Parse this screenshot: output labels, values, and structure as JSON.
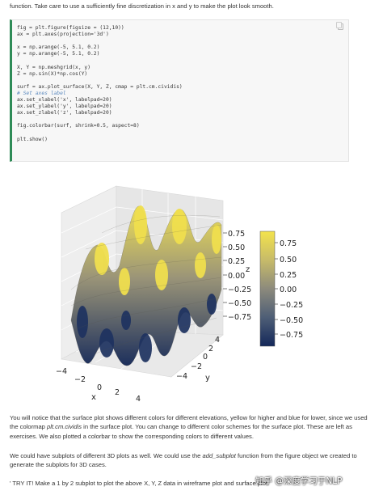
{
  "intro_text": "function. Take care to use a sufficiently fine discretization in x and y to make the plot look smooth.",
  "code": {
    "lines_a": "fig = plt.figure(figsize = (12,10))\nax = plt.axes(projection='3d')\n\nx = np.arange(-5, 5.1, 0.2)\ny = np.arange(-5, 5.1, 0.2)\n\nX, Y = np.meshgrid(x, y)\nZ = np.sin(X)*np.cos(Y)\n\nsurf = ax.plot_surface(X, Y, Z, cmap = plt.cm.cividis)\n",
    "comment": "# Set axes label",
    "lines_b": "ax.set_xlabel('x', labelpad=20)\nax.set_ylabel('y', labelpad=20)\nax.set_zlabel('z', labelpad=20)\n\nfig.colorbar(surf, shrink=0.5, aspect=8)\n\nplt.show()"
  },
  "plot": {
    "z_ticks": [
      "0.75",
      "0.50",
      "0.25",
      "0.00",
      "−0.25",
      "−0.50",
      "−0.75"
    ],
    "colorbar_ticks": [
      "0.75",
      "0.50",
      "0.25",
      "0.00",
      "−0.25",
      "−0.50",
      "−0.75"
    ],
    "x_ticks": [
      "−4",
      "−2",
      "0",
      "2",
      "4"
    ],
    "y_ticks": [
      "−4",
      "−2",
      "0",
      "2",
      "4"
    ],
    "xlabel": "x",
    "ylabel": "y",
    "zlabel": "z",
    "colors": {
      "high": "#f2e14a",
      "mid": "#8f8a78",
      "low": "#1b2f5a"
    }
  },
  "paragraphs": {
    "p1_a": "You will notice that the surface plot shows different colors for different elevations, yellow for higher and blue for lower, since we used the colormap ",
    "p1_em": "plt.cm.cividis",
    "p1_b": " in the surface plot. You can change to different color schemes for the surface plot. These are left as exercises. We also plotted a colorbar to show the corresponding colors to different values.",
    "p2_a": "We could have subplots of different 3D plots as well. We could use the ",
    "p2_em": "add_subplot",
    "p2_b": " function from the figure object we created to generate the subplots for 3D cases.",
    "p3": "' TRY IT! Make a 1 by 2 subplot to plot the above X, Y, Z data in wireframe plot and surface plot."
  },
  "watermark": "知乎 @深度学习于NLP"
}
